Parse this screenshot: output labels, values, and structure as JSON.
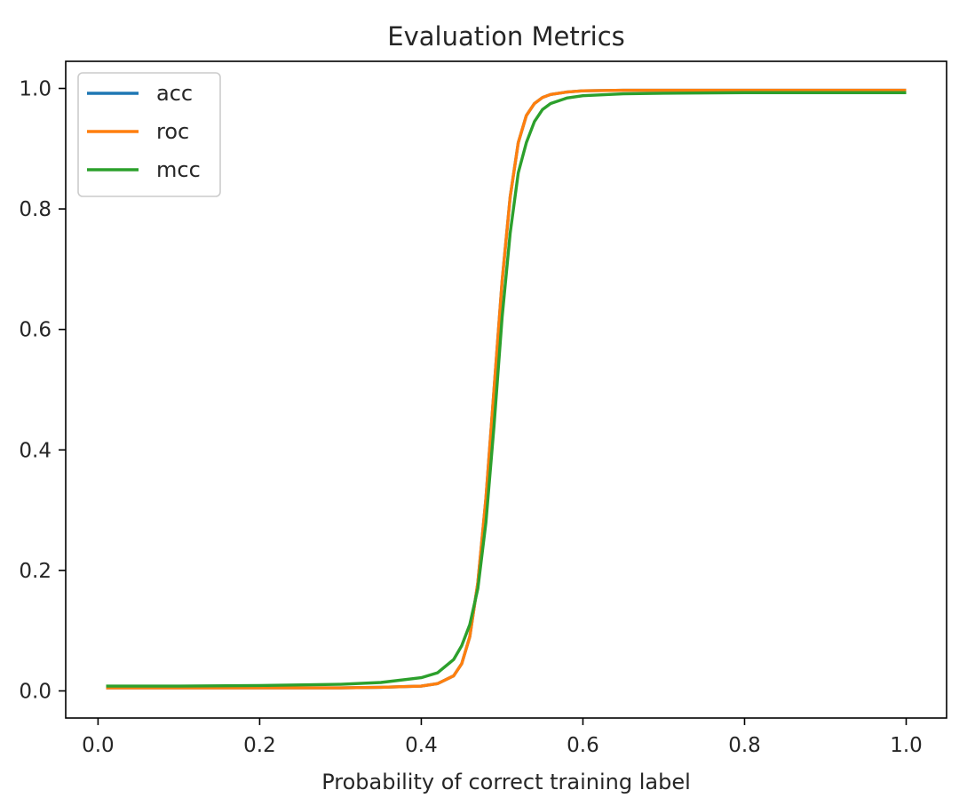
{
  "chart_data": {
    "type": "line",
    "title": "Evaluation Metrics",
    "xlabel": "Probability of correct training label",
    "ylabel": "",
    "xlim": [
      -0.04,
      1.05
    ],
    "ylim": [
      -0.045,
      1.045
    ],
    "xticks": [
      0.0,
      0.2,
      0.4,
      0.6,
      0.8,
      1.0
    ],
    "xtick_labels": [
      "0.0",
      "0.2",
      "0.4",
      "0.6",
      "0.8",
      "1.0"
    ],
    "yticks": [
      0.0,
      0.2,
      0.4,
      0.6,
      0.8,
      1.0
    ],
    "ytick_labels": [
      "0.0",
      "0.2",
      "0.4",
      "0.6",
      "0.8",
      "1.0"
    ],
    "grid": false,
    "legend_position": "top-left",
    "x": [
      0.01,
      0.1,
      0.2,
      0.3,
      0.35,
      0.4,
      0.42,
      0.44,
      0.45,
      0.46,
      0.47,
      0.48,
      0.49,
      0.5,
      0.51,
      0.52,
      0.53,
      0.54,
      0.55,
      0.56,
      0.58,
      0.6,
      0.65,
      0.7,
      0.8,
      0.9,
      1.0
    ],
    "series": [
      {
        "name": "acc",
        "color": "#1f77b4",
        "values": [
          0.005,
          0.005,
          0.005,
          0.005,
          0.006,
          0.008,
          0.012,
          0.025,
          0.045,
          0.09,
          0.18,
          0.32,
          0.5,
          0.68,
          0.82,
          0.91,
          0.955,
          0.975,
          0.985,
          0.99,
          0.994,
          0.996,
          0.997,
          0.997,
          0.997,
          0.997,
          0.997
        ]
      },
      {
        "name": "roc",
        "color": "#ff7f0e",
        "values": [
          0.005,
          0.005,
          0.005,
          0.005,
          0.006,
          0.008,
          0.012,
          0.025,
          0.045,
          0.09,
          0.18,
          0.32,
          0.5,
          0.68,
          0.82,
          0.91,
          0.955,
          0.975,
          0.985,
          0.99,
          0.994,
          0.996,
          0.997,
          0.997,
          0.997,
          0.997,
          0.997
        ]
      },
      {
        "name": "mcc",
        "color": "#2ca02c",
        "values": [
          0.008,
          0.008,
          0.009,
          0.011,
          0.014,
          0.022,
          0.03,
          0.052,
          0.075,
          0.11,
          0.17,
          0.28,
          0.44,
          0.62,
          0.76,
          0.86,
          0.91,
          0.945,
          0.965,
          0.975,
          0.984,
          0.988,
          0.991,
          0.992,
          0.993,
          0.993,
          0.993
        ]
      }
    ]
  }
}
